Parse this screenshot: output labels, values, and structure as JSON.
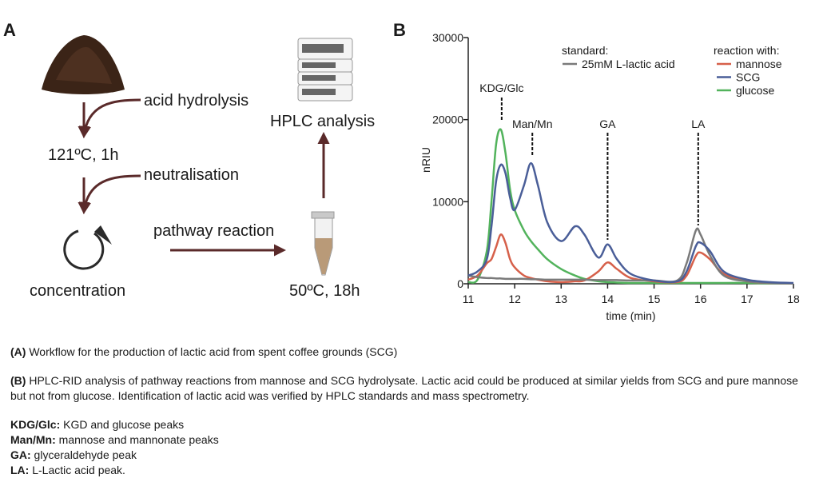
{
  "panel_a": {
    "label": "A",
    "steps": [
      "acid hydrolysis",
      "121ºC, 1h",
      "neutralisation",
      "concentration",
      "pathway reaction",
      "50ºC, 18h",
      "HPLC analysis"
    ]
  },
  "chart_data": {
    "type": "line",
    "panel_label": "B",
    "x_label": "time (min)",
    "y_label": "nRIU",
    "xlim": [
      11,
      18
    ],
    "xticks": [
      11,
      12,
      13,
      14,
      15,
      16,
      17,
      18
    ],
    "ylim": [
      0,
      30000
    ],
    "yticks": [
      0,
      10000,
      20000,
      30000
    ],
    "legend_titles": [
      "standard:",
      "reaction with:"
    ],
    "x": [
      11,
      11.2,
      11.4,
      11.5,
      11.6,
      11.7,
      11.8,
      11.9,
      12.0,
      12.2,
      12.35,
      12.5,
      12.7,
      13.0,
      13.3,
      13.5,
      13.8,
      14.0,
      14.2,
      14.5,
      15.0,
      15.5,
      15.7,
      15.9,
      16.0,
      16.2,
      16.5,
      17.0,
      17.5,
      18.0
    ],
    "series": [
      {
        "name": "25mM L-lactic acid",
        "color": "#7a7a7a",
        "values": [
          1000,
          800,
          700,
          700,
          650,
          650,
          600,
          600,
          600,
          600,
          550,
          550,
          500,
          500,
          500,
          500,
          450,
          450,
          450,
          400,
          400,
          400,
          2500,
          6500,
          6000,
          3500,
          1000,
          300,
          100,
          50
        ]
      },
      {
        "name": "mannose",
        "color": "#d6604a",
        "values": [
          500,
          1000,
          2500,
          3000,
          4500,
          6000,
          5000,
          3000,
          2000,
          1000,
          700,
          500,
          300,
          200,
          300,
          400,
          1500,
          2600,
          1800,
          700,
          300,
          200,
          1000,
          3400,
          3800,
          3000,
          1200,
          300,
          100,
          50
        ]
      },
      {
        "name": "SCG",
        "color": "#4a5e98",
        "values": [
          1000,
          1500,
          3000,
          7000,
          12500,
          14500,
          13500,
          10500,
          9000,
          12000,
          14700,
          12000,
          7500,
          5200,
          7000,
          6000,
          3200,
          4800,
          3000,
          1200,
          400,
          300,
          1500,
          4600,
          5000,
          4000,
          1500,
          500,
          200,
          100
        ]
      },
      {
        "name": "glucose",
        "color": "#52b35c",
        "values": [
          200,
          500,
          4000,
          10000,
          17000,
          18800,
          16000,
          11500,
          9000,
          6500,
          5200,
          4200,
          3000,
          1800,
          1000,
          600,
          300,
          200,
          150,
          100,
          100,
          100,
          100,
          100,
          100,
          100,
          100,
          100,
          50,
          50
        ]
      }
    ],
    "annotations": [
      {
        "label": "KDG/Glc",
        "x": 11.72
      },
      {
        "label": "Man/Mn",
        "x": 12.38
      },
      {
        "label": "GA",
        "x": 14.0
      },
      {
        "label": "LA",
        "x": 15.95
      }
    ]
  },
  "caption": [
    {
      "label": "(A)",
      "text": " Workflow for the production of lactic acid from spent coffee grounds (SCG)"
    },
    {
      "label": "(B)",
      "text": " HPLC-RID analysis of pathway reactions from mannose and SCG hydrolysate. Lactic acid could be produced at similar yields from SCG and pure mannose but not from glucose. Identification of lactic acid was verified by HPLC standards and mass spectrometry."
    },
    {
      "label": "KDG/Glc:",
      "text": " KGD and glucose peaks"
    },
    {
      "label": "Man/Mn:",
      "text": " mannose and mannonate peaks"
    },
    {
      "label": "GA:",
      "text": " glyceraldehyde peak"
    },
    {
      "label": "LA:",
      "text": " L-Lactic acid peak."
    }
  ]
}
